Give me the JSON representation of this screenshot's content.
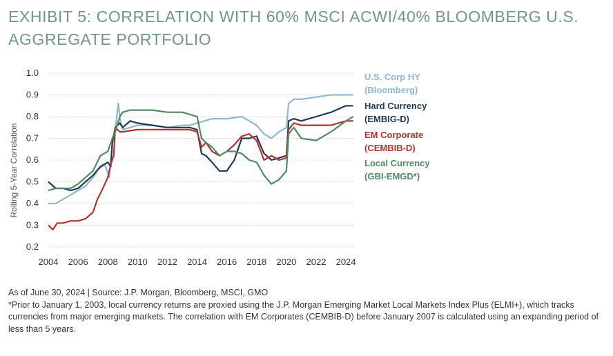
{
  "title": "EXHIBIT 5: CORRELATION WITH 60% MSCI ACWI/40% BLOOMBERG U.S. AGGREGATE PORTFOLIO",
  "source_note": "As of June 30, 2024 | Source: J.P. Morgan, Bloomberg, MSCI, GMO",
  "footnote": "*Prior to January 1, 2003, local currency returns are proxied using the J.P. Morgan Emerging Market Local Markets Index Plus (ELMI+), which tracks currencies from major emerging markets. The correlation with EM Corporates (CEMBIB-D) before January 2007 is calculated using an expanding period of less than 5 years.",
  "chart_data": {
    "type": "line",
    "ylabel": "Rolling 5-Year Correlation",
    "xlabel": "",
    "xlim": [
      2004,
      2024.6
    ],
    "ylim": [
      0.2,
      1.0
    ],
    "x_ticks": [
      "2004",
      "2006",
      "2008",
      "2010",
      "2012",
      "2014",
      "2016",
      "2018",
      "2020",
      "2022",
      "2024"
    ],
    "y_ticks": [
      "0.2",
      "0.3",
      "0.4",
      "0.5",
      "0.6",
      "0.7",
      "0.8",
      "0.9",
      "1.0"
    ],
    "grid": true,
    "legend_position": "right",
    "series": [
      {
        "name": "U.S. Corp HY",
        "label_lines": [
          "U.S. Corp HY",
          "(Bloomberg)"
        ],
        "color": "#8fb7d3",
        "points": [
          [
            2004,
            0.4
          ],
          [
            2004.5,
            0.4
          ],
          [
            2005,
            0.42
          ],
          [
            2005.5,
            0.44
          ],
          [
            2006,
            0.46
          ],
          [
            2006.5,
            0.48
          ],
          [
            2007,
            0.52
          ],
          [
            2007.4,
            0.56
          ],
          [
            2007.8,
            0.58
          ],
          [
            2008.1,
            0.52
          ],
          [
            2008.3,
            0.68
          ],
          [
            2008.5,
            0.74
          ],
          [
            2008.7,
            0.86
          ],
          [
            2008.85,
            0.78
          ],
          [
            2009,
            0.74
          ],
          [
            2009.5,
            0.75
          ],
          [
            2010,
            0.76
          ],
          [
            2011,
            0.76
          ],
          [
            2012,
            0.75
          ],
          [
            2013,
            0.76
          ],
          [
            2013.5,
            0.76
          ],
          [
            2014,
            0.77
          ],
          [
            2014.5,
            0.78
          ],
          [
            2015,
            0.79
          ],
          [
            2016,
            0.79
          ],
          [
            2017,
            0.8
          ],
          [
            2017.5,
            0.78
          ],
          [
            2018,
            0.76
          ],
          [
            2018.5,
            0.72
          ],
          [
            2019,
            0.7
          ],
          [
            2019.5,
            0.73
          ],
          [
            2020,
            0.75
          ],
          [
            2020.15,
            0.86
          ],
          [
            2020.5,
            0.88
          ],
          [
            2021,
            0.88
          ],
          [
            2022,
            0.89
          ],
          [
            2023,
            0.9
          ],
          [
            2024,
            0.9
          ],
          [
            2024.5,
            0.9
          ]
        ]
      },
      {
        "name": "Hard Currency",
        "label_lines": [
          "Hard Currency",
          "(EMBIG-D)"
        ],
        "color": "#1b3a57",
        "points": [
          [
            2004,
            0.5
          ],
          [
            2004.5,
            0.47
          ],
          [
            2005,
            0.47
          ],
          [
            2005.5,
            0.46
          ],
          [
            2006,
            0.47
          ],
          [
            2006.5,
            0.5
          ],
          [
            2007,
            0.53
          ],
          [
            2007.5,
            0.57
          ],
          [
            2008,
            0.59
          ],
          [
            2008.2,
            0.57
          ],
          [
            2008.3,
            0.68
          ],
          [
            2008.5,
            0.75
          ],
          [
            2008.8,
            0.77
          ],
          [
            2009,
            0.75
          ],
          [
            2009.5,
            0.78
          ],
          [
            2010,
            0.77
          ],
          [
            2011,
            0.76
          ],
          [
            2012,
            0.75
          ],
          [
            2013,
            0.75
          ],
          [
            2013.5,
            0.75
          ],
          [
            2014,
            0.74
          ],
          [
            2014.3,
            0.63
          ],
          [
            2014.6,
            0.62
          ],
          [
            2015,
            0.59
          ],
          [
            2015.5,
            0.55
          ],
          [
            2016,
            0.55
          ],
          [
            2016.5,
            0.6
          ],
          [
            2017,
            0.7
          ],
          [
            2017.5,
            0.7
          ],
          [
            2018,
            0.71
          ],
          [
            2018.5,
            0.63
          ],
          [
            2019,
            0.6
          ],
          [
            2019.5,
            0.61
          ],
          [
            2020,
            0.62
          ],
          [
            2020.15,
            0.78
          ],
          [
            2020.5,
            0.79
          ],
          [
            2021,
            0.78
          ],
          [
            2022,
            0.8
          ],
          [
            2023,
            0.82
          ],
          [
            2024,
            0.85
          ],
          [
            2024.5,
            0.85
          ]
        ]
      },
      {
        "name": "EM Corporate",
        "label_lines": [
          "EM Corporate",
          "(CEMBIB-D)"
        ],
        "color": "#b8322d",
        "points": [
          [
            2004,
            0.3
          ],
          [
            2004.3,
            0.28
          ],
          [
            2004.6,
            0.31
          ],
          [
            2005,
            0.31
          ],
          [
            2005.5,
            0.32
          ],
          [
            2006,
            0.32
          ],
          [
            2006.5,
            0.33
          ],
          [
            2007,
            0.36
          ],
          [
            2007.3,
            0.42
          ],
          [
            2007.6,
            0.46
          ],
          [
            2008,
            0.52
          ],
          [
            2008.2,
            0.58
          ],
          [
            2008.4,
            0.62
          ],
          [
            2008.5,
            0.75
          ],
          [
            2008.8,
            0.73
          ],
          [
            2009,
            0.73
          ],
          [
            2010,
            0.74
          ],
          [
            2011,
            0.74
          ],
          [
            2012,
            0.74
          ],
          [
            2013,
            0.74
          ],
          [
            2013.5,
            0.74
          ],
          [
            2014,
            0.73
          ],
          [
            2014.3,
            0.66
          ],
          [
            2014.6,
            0.68
          ],
          [
            2015,
            0.64
          ],
          [
            2015.5,
            0.62
          ],
          [
            2016,
            0.64
          ],
          [
            2016.5,
            0.67
          ],
          [
            2017,
            0.71
          ],
          [
            2017.5,
            0.72
          ],
          [
            2018,
            0.69
          ],
          [
            2018.5,
            0.6
          ],
          [
            2019,
            0.62
          ],
          [
            2019.5,
            0.6
          ],
          [
            2020,
            0.61
          ],
          [
            2020.15,
            0.74
          ],
          [
            2020.5,
            0.77
          ],
          [
            2021,
            0.76
          ],
          [
            2022,
            0.76
          ],
          [
            2023,
            0.76
          ],
          [
            2024,
            0.78
          ],
          [
            2024.5,
            0.78
          ]
        ]
      },
      {
        "name": "Local Currency",
        "label_lines": [
          "Local Currency",
          "(GBI-EMGD*)"
        ],
        "color": "#4f8a62",
        "points": [
          [
            2004,
            0.46
          ],
          [
            2004.5,
            0.47
          ],
          [
            2005,
            0.47
          ],
          [
            2005.5,
            0.47
          ],
          [
            2006,
            0.49
          ],
          [
            2006.5,
            0.52
          ],
          [
            2007,
            0.55
          ],
          [
            2007.5,
            0.62
          ],
          [
            2008,
            0.64
          ],
          [
            2008.3,
            0.7
          ],
          [
            2008.5,
            0.73
          ],
          [
            2008.8,
            0.8
          ],
          [
            2009,
            0.82
          ],
          [
            2009.5,
            0.83
          ],
          [
            2010,
            0.83
          ],
          [
            2011,
            0.83
          ],
          [
            2012,
            0.82
          ],
          [
            2013,
            0.82
          ],
          [
            2013.5,
            0.81
          ],
          [
            2014,
            0.8
          ],
          [
            2014.3,
            0.7
          ],
          [
            2014.6,
            0.68
          ],
          [
            2015,
            0.66
          ],
          [
            2015.5,
            0.62
          ],
          [
            2016,
            0.64
          ],
          [
            2016.5,
            0.64
          ],
          [
            2017,
            0.63
          ],
          [
            2017.5,
            0.6
          ],
          [
            2018,
            0.59
          ],
          [
            2018.5,
            0.53
          ],
          [
            2019,
            0.49
          ],
          [
            2019.5,
            0.51
          ],
          [
            2020,
            0.55
          ],
          [
            2020.15,
            0.72
          ],
          [
            2020.5,
            0.75
          ],
          [
            2021,
            0.7
          ],
          [
            2022,
            0.69
          ],
          [
            2023,
            0.73
          ],
          [
            2024,
            0.78
          ],
          [
            2024.5,
            0.8
          ]
        ]
      }
    ]
  }
}
